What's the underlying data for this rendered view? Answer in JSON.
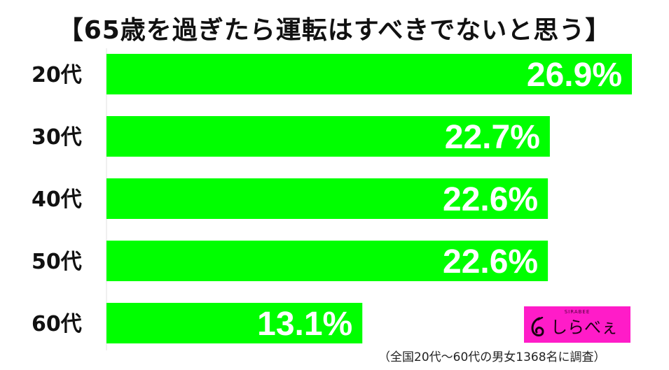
{
  "chart_data": {
    "type": "bar",
    "orientation": "horizontal",
    "title": "【65歳を過ぎたら運転はすべきでないと思う】",
    "categories": [
      "20代",
      "30代",
      "40代",
      "50代",
      "60代"
    ],
    "values": [
      26.9,
      22.7,
      22.6,
      22.6,
      13.1
    ],
    "value_labels": [
      "26.9%",
      "22.7%",
      "22.6%",
      "22.6%",
      "13.1%"
    ],
    "unit": "%",
    "xlim": [
      0,
      26.9
    ],
    "grid": false,
    "legend": "none",
    "bar_color": "#00ff00",
    "label_color": "#ffffff"
  },
  "brand": {
    "tagline": "SIRABEE",
    "name": "しらべぇ",
    "color": "#ff1cc8"
  },
  "footnote": "（全国20代～60代の男女1368名に調査）"
}
